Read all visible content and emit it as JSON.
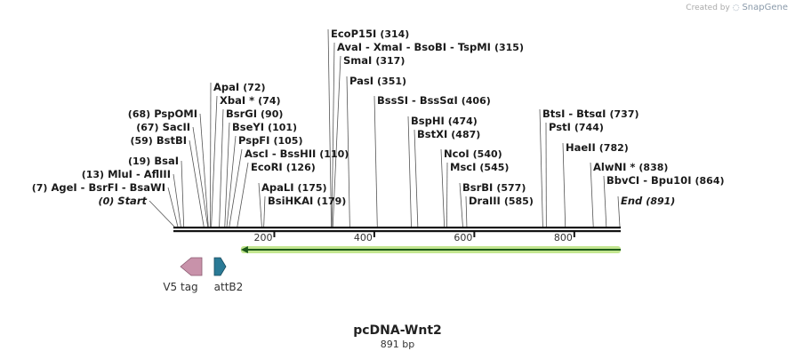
{
  "credit": {
    "prefix": "Created by",
    "brand": "SnapGene"
  },
  "title": "pcDNA-Wnt2",
  "subtitle": "891 bp",
  "sequence_length": 891,
  "ticks": [
    "200",
    "400",
    "600",
    "800"
  ],
  "tick_values": [
    200,
    400,
    600,
    800
  ],
  "colors": {
    "feature_v5": "#c892aa",
    "feature_attb2": "#2a7a96",
    "arrow_line": "#1d5a1a",
    "arrow_glow": "#b9e27d"
  },
  "features": [
    {
      "label": "V5 tag",
      "direction": "left",
      "color": "#c892aa"
    },
    {
      "label": "attB2",
      "direction": "right",
      "color": "#2a7a96"
    }
  ],
  "orf": {
    "start": 135,
    "end": 891,
    "direction": "left"
  },
  "sites": [
    {
      "names": [
        "Start"
      ],
      "italic": true,
      "pos": 0,
      "pos_label": "(0)",
      "side": "left"
    },
    {
      "names": [
        "AgeI",
        "BsrFI",
        "BsaWI"
      ],
      "pos": 7,
      "pos_label": "(7)",
      "side": "left"
    },
    {
      "names": [
        "MluI",
        "AflIII"
      ],
      "pos": 13,
      "pos_label": "(13)",
      "side": "left"
    },
    {
      "names": [
        "BsaI"
      ],
      "pos": 19,
      "pos_label": "(19)",
      "side": "left"
    },
    {
      "names": [
        "BstBI"
      ],
      "pos": 59,
      "pos_label": "(59)",
      "side": "left"
    },
    {
      "names": [
        "SacII"
      ],
      "pos": 67,
      "pos_label": "(67)",
      "side": "left"
    },
    {
      "names": [
        "PspOMI"
      ],
      "pos": 68,
      "pos_label": "(68)",
      "side": "left"
    },
    {
      "names": [
        "ApaI"
      ],
      "pos": 72,
      "pos_label": "(72)",
      "side": "right"
    },
    {
      "names": [
        "XbaI *"
      ],
      "pos": 74,
      "pos_label": "(74)",
      "side": "right"
    },
    {
      "names": [
        "BsrGI"
      ],
      "pos": 90,
      "pos_label": "(90)",
      "side": "right"
    },
    {
      "names": [
        "BseYI"
      ],
      "pos": 101,
      "pos_label": "(101)",
      "side": "right"
    },
    {
      "names": [
        "PspFI"
      ],
      "pos": 105,
      "pos_label": "(105)",
      "side": "right"
    },
    {
      "names": [
        "AscI",
        "BssHII"
      ],
      "pos": 110,
      "pos_label": "(110)",
      "side": "right"
    },
    {
      "names": [
        "EcoRI"
      ],
      "pos": 126,
      "pos_label": "(126)",
      "side": "right"
    },
    {
      "names": [
        "ApaLI"
      ],
      "pos": 175,
      "pos_label": "(175)",
      "side": "right"
    },
    {
      "names": [
        "BsiHKAI"
      ],
      "pos": 179,
      "pos_label": "(179)",
      "side": "right"
    },
    {
      "names": [
        "EcoP15I"
      ],
      "pos": 314,
      "pos_label": "(314)",
      "side": "right"
    },
    {
      "names": [
        "AvaI",
        "XmaI",
        "BsoBI",
        "TspMI"
      ],
      "pos": 315,
      "pos_label": "(315)",
      "side": "right"
    },
    {
      "names": [
        "SmaI"
      ],
      "pos": 317,
      "pos_label": "(317)",
      "side": "right"
    },
    {
      "names": [
        "PasI"
      ],
      "pos": 351,
      "pos_label": "(351)",
      "side": "right"
    },
    {
      "names": [
        "BssSI",
        "BssSαI"
      ],
      "pos": 406,
      "pos_label": "(406)",
      "side": "right"
    },
    {
      "names": [
        "BspHI"
      ],
      "pos": 474,
      "pos_label": "(474)",
      "side": "right"
    },
    {
      "names": [
        "BstXI"
      ],
      "pos": 487,
      "pos_label": "(487)",
      "side": "right"
    },
    {
      "names": [
        "NcoI"
      ],
      "pos": 540,
      "pos_label": "(540)",
      "side": "right"
    },
    {
      "names": [
        "MscI"
      ],
      "pos": 545,
      "pos_label": "(545)",
      "side": "right"
    },
    {
      "names": [
        "BsrBI"
      ],
      "pos": 577,
      "pos_label": "(577)",
      "side": "right"
    },
    {
      "names": [
        "DraIII"
      ],
      "pos": 585,
      "pos_label": "(585)",
      "side": "right"
    },
    {
      "names": [
        "BtsI",
        "BtsαI"
      ],
      "pos": 737,
      "pos_label": "(737)",
      "side": "right"
    },
    {
      "names": [
        "PstI"
      ],
      "pos": 744,
      "pos_label": "(744)",
      "side": "right"
    },
    {
      "names": [
        "HaeII"
      ],
      "pos": 782,
      "pos_label": "(782)",
      "side": "right"
    },
    {
      "names": [
        "AlwNI *"
      ],
      "pos": 838,
      "pos_label": "(838)",
      "side": "right"
    },
    {
      "names": [
        "BbvCI",
        "Bpu10I"
      ],
      "pos": 864,
      "pos_label": "(864)",
      "side": "right"
    },
    {
      "names": [
        "End"
      ],
      "italic": true,
      "pos": 891,
      "pos_label": "(891)",
      "side": "right"
    }
  ]
}
